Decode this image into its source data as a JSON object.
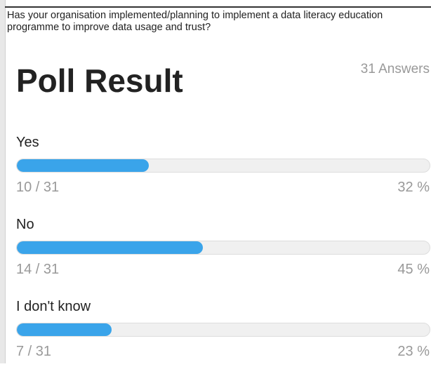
{
  "question": "Has your organisation implemented/planning to implement a data literacy education programme to improve data usage and trust?",
  "title": "Poll Result",
  "answers_label": "31 Answers",
  "xlim": [
    0,
    100
  ],
  "options": [
    {
      "label": "Yes",
      "count_label": "10 / 31",
      "percent": 32,
      "percent_label": "32 %"
    },
    {
      "label": "No",
      "count_label": "14 / 31",
      "percent": 45,
      "percent_label": "45 %"
    },
    {
      "label": "I don't know",
      "count_label": "7 / 31",
      "percent": 23,
      "percent_label": "23 %"
    }
  ]
}
